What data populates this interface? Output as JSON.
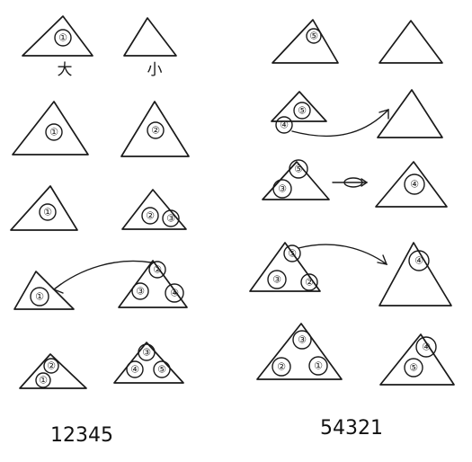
{
  "captions": {
    "left": "12345",
    "right": "54321"
  },
  "labels": {
    "big": "大",
    "small": "小"
  },
  "disc_numbers": {
    "l1": [
      "①"
    ],
    "l2": [
      "①",
      "②"
    ],
    "l3": [
      "①",
      "②",
      "③"
    ],
    "l4": [
      "①",
      "②",
      "③",
      "④"
    ],
    "l5": [
      "②",
      "①",
      "③",
      "④",
      "⑤"
    ],
    "r1": [
      "⑤"
    ],
    "r2": [
      "⑤",
      "④"
    ],
    "r3": [
      "⑤",
      "③",
      "④"
    ],
    "r4": [
      "⑤",
      "③",
      "②",
      "④"
    ],
    "r5": [
      "③",
      "②",
      "①",
      "④",
      "⑤"
    ]
  }
}
